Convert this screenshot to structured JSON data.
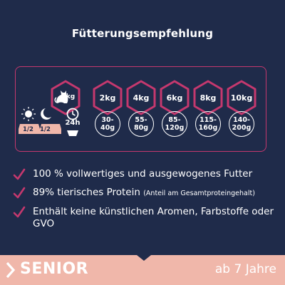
{
  "title": "Fütterungsempfehlung",
  "colors": {
    "background": "#1f2b4a",
    "accent": "#c5386e",
    "footer": "#f0b7aa",
    "text": "#ffffff"
  },
  "feeding": {
    "unit_label": "kg",
    "daily_label": "24h",
    "day_split": [
      "1/2",
      "1/2"
    ],
    "weights": [
      {
        "weight": "2kg",
        "amount_line1": "30-",
        "amount_line2": "40g"
      },
      {
        "weight": "4kg",
        "amount_line1": "55-",
        "amount_line2": "80g"
      },
      {
        "weight": "6kg",
        "amount_line1": "85-",
        "amount_line2": "120g"
      },
      {
        "weight": "8kg",
        "amount_line1": "115-",
        "amount_line2": "160g"
      },
      {
        "weight": "10kg",
        "amount_line1": "140-",
        "amount_line2": "200g"
      }
    ]
  },
  "bullets": [
    {
      "text": "100 % vollwertiges und ausgewogenes Futter",
      "note": ""
    },
    {
      "text": "89% tierisches Protein",
      "note": "(Anteil am Gesamtproteingehalt)"
    },
    {
      "text": "Enthält keine künstlichen Aromen, Farbstoffe oder GVO",
      "note": ""
    }
  ],
  "footer": {
    "label": "SENIOR",
    "age": "ab 7 Jahre"
  }
}
